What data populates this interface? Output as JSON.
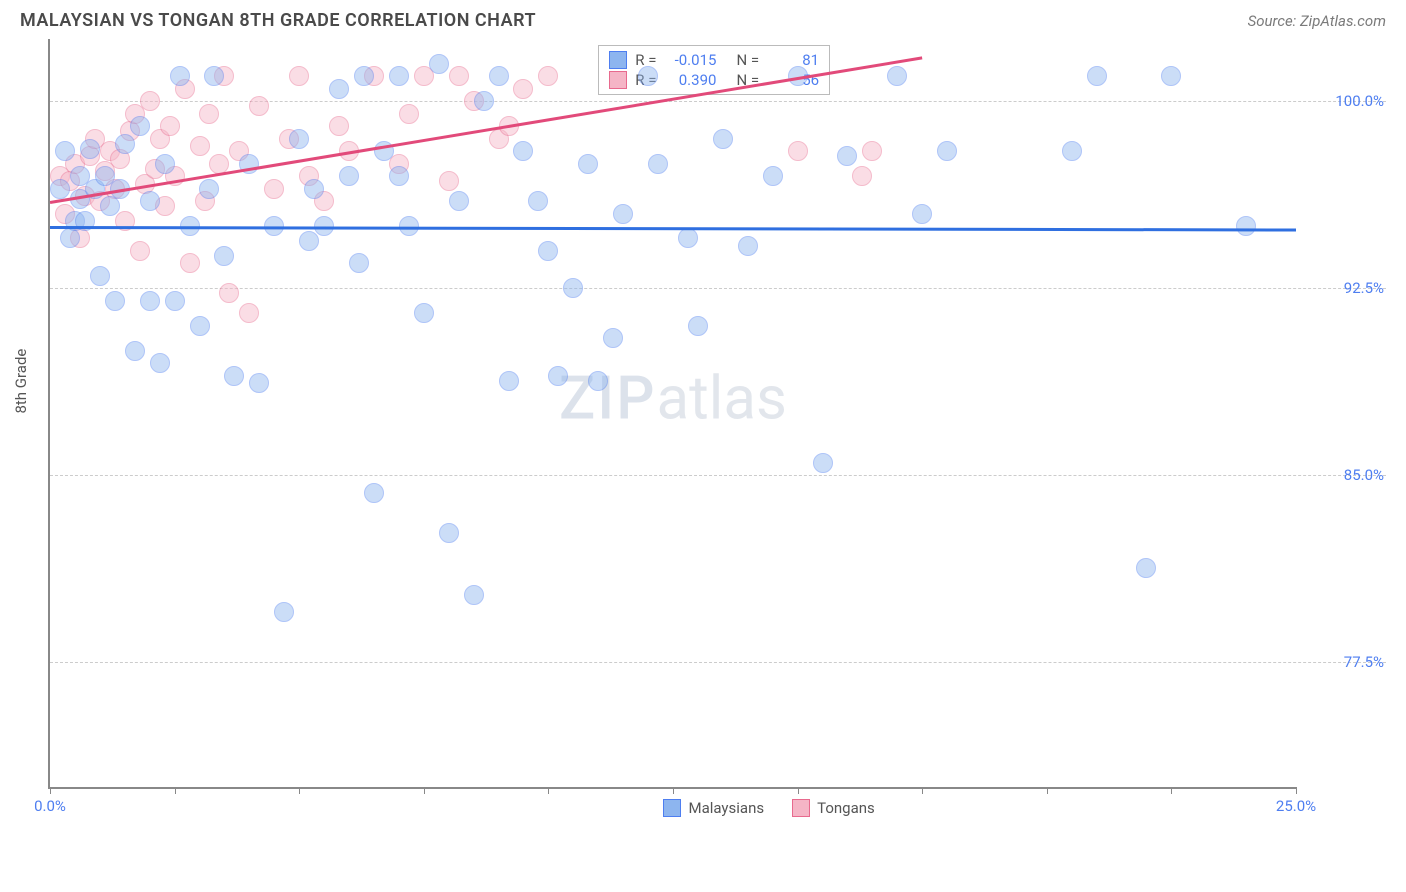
{
  "title": "MALAYSIAN VS TONGAN 8TH GRADE CORRELATION CHART",
  "source": "Source: ZipAtlas.com",
  "watermark": {
    "part1": "ZIP",
    "part2": "atlas"
  },
  "y_axis_label": "8th Grade",
  "chart": {
    "type": "scatter",
    "xlim": [
      0,
      25
    ],
    "ylim": [
      72.5,
      102.5
    ],
    "x_ticks": [
      0,
      2.5,
      5,
      7.5,
      10,
      12.5,
      15,
      17.5,
      20,
      22.5,
      25
    ],
    "x_tick_labels": {
      "0": "0.0%",
      "25": "25.0%"
    },
    "y_ticks": [
      77.5,
      85.0,
      92.5,
      100.0
    ],
    "y_tick_labels": [
      "77.5%",
      "85.0%",
      "92.5%",
      "100.0%"
    ],
    "grid_color": "#cccccc",
    "axis_color": "#888888",
    "background": "#ffffff",
    "tick_label_color": "#4e7ef0",
    "marker_radius": 10,
    "marker_opacity": 0.45,
    "series": [
      {
        "name": "Malaysians",
        "fill_color": "#8db5ef",
        "stroke_color": "#4e7ef0",
        "trend_color": "#2f6fe0",
        "R": "-0.015",
        "N": "81",
        "trend": {
          "x1": 0,
          "y1": 95.0,
          "x2": 25,
          "y2": 94.9
        },
        "points": [
          [
            0.2,
            96.5
          ],
          [
            0.3,
            98.0
          ],
          [
            0.4,
            94.5
          ],
          [
            0.5,
            95.2
          ],
          [
            0.6,
            97.0
          ],
          [
            0.6,
            96.1
          ],
          [
            0.7,
            95.2
          ],
          [
            0.8,
            98.1
          ],
          [
            0.9,
            96.5
          ],
          [
            1.0,
            93.0
          ],
          [
            1.1,
            97.0
          ],
          [
            1.2,
            95.8
          ],
          [
            1.3,
            92.0
          ],
          [
            1.4,
            96.5
          ],
          [
            1.5,
            98.3
          ],
          [
            1.7,
            90.0
          ],
          [
            1.8,
            99.0
          ],
          [
            2.0,
            92.0
          ],
          [
            2.0,
            96.0
          ],
          [
            2.2,
            89.5
          ],
          [
            2.3,
            97.5
          ],
          [
            2.5,
            92.0
          ],
          [
            2.6,
            101.0
          ],
          [
            2.8,
            95.0
          ],
          [
            3.0,
            91.0
          ],
          [
            3.2,
            96.5
          ],
          [
            3.3,
            101.0
          ],
          [
            3.5,
            93.8
          ],
          [
            3.7,
            89.0
          ],
          [
            4.0,
            97.5
          ],
          [
            4.2,
            88.7
          ],
          [
            4.5,
            95.0
          ],
          [
            4.7,
            79.5
          ],
          [
            5.0,
            98.5
          ],
          [
            5.2,
            94.4
          ],
          [
            5.3,
            96.5
          ],
          [
            5.5,
            95.0
          ],
          [
            5.8,
            100.5
          ],
          [
            6.0,
            97.0
          ],
          [
            6.2,
            93.5
          ],
          [
            6.3,
            101.0
          ],
          [
            6.5,
            84.3
          ],
          [
            6.7,
            98.0
          ],
          [
            7.0,
            101.0
          ],
          [
            7.0,
            97.0
          ],
          [
            7.2,
            95.0
          ],
          [
            7.5,
            91.5
          ],
          [
            7.8,
            101.5
          ],
          [
            8.0,
            82.7
          ],
          [
            8.2,
            96.0
          ],
          [
            8.5,
            80.2
          ],
          [
            8.7,
            100.0
          ],
          [
            9.0,
            101.0
          ],
          [
            9.2,
            88.8
          ],
          [
            9.5,
            98.0
          ],
          [
            9.8,
            96.0
          ],
          [
            10.0,
            94.0
          ],
          [
            10.2,
            89.0
          ],
          [
            10.5,
            92.5
          ],
          [
            10.8,
            97.5
          ],
          [
            11.0,
            88.8
          ],
          [
            11.3,
            90.5
          ],
          [
            11.5,
            95.5
          ],
          [
            12.0,
            101.0
          ],
          [
            12.2,
            97.5
          ],
          [
            12.8,
            94.5
          ],
          [
            13.0,
            91.0
          ],
          [
            13.5,
            98.5
          ],
          [
            14.0,
            94.2
          ],
          [
            14.5,
            97.0
          ],
          [
            15.0,
            101.0
          ],
          [
            15.5,
            85.5
          ],
          [
            16.0,
            97.8
          ],
          [
            17.0,
            101.0
          ],
          [
            17.5,
            95.5
          ],
          [
            18.0,
            98.0
          ],
          [
            22.5,
            101.0
          ],
          [
            22.0,
            81.3
          ],
          [
            21.0,
            101.0
          ],
          [
            20.5,
            98.0
          ],
          [
            24.0,
            95.0
          ]
        ]
      },
      {
        "name": "Tongans",
        "fill_color": "#f5b5c6",
        "stroke_color": "#e86a8e",
        "trend_color": "#e24a7a",
        "R": "0.390",
        "N": "56",
        "trend": {
          "x1": 0,
          "y1": 96.0,
          "x2": 17.5,
          "y2": 101.8
        },
        "points": [
          [
            0.2,
            97.0
          ],
          [
            0.3,
            95.5
          ],
          [
            0.4,
            96.8
          ],
          [
            0.5,
            97.5
          ],
          [
            0.6,
            94.5
          ],
          [
            0.7,
            96.2
          ],
          [
            0.8,
            97.8
          ],
          [
            0.9,
            98.5
          ],
          [
            1.0,
            96.0
          ],
          [
            1.1,
            97.2
          ],
          [
            1.2,
            98.0
          ],
          [
            1.3,
            96.5
          ],
          [
            1.4,
            97.7
          ],
          [
            1.5,
            95.2
          ],
          [
            1.6,
            98.8
          ],
          [
            1.7,
            99.5
          ],
          [
            1.8,
            94.0
          ],
          [
            1.9,
            96.7
          ],
          [
            2.0,
            100.0
          ],
          [
            2.1,
            97.3
          ],
          [
            2.2,
            98.5
          ],
          [
            2.3,
            95.8
          ],
          [
            2.4,
            99.0
          ],
          [
            2.5,
            97.0
          ],
          [
            2.7,
            100.5
          ],
          [
            2.8,
            93.5
          ],
          [
            3.0,
            98.2
          ],
          [
            3.1,
            96.0
          ],
          [
            3.2,
            99.5
          ],
          [
            3.4,
            97.5
          ],
          [
            3.5,
            101.0
          ],
          [
            3.6,
            92.3
          ],
          [
            3.8,
            98.0
          ],
          [
            4.0,
            91.5
          ],
          [
            4.2,
            99.8
          ],
          [
            4.5,
            96.5
          ],
          [
            4.8,
            98.5
          ],
          [
            5.0,
            101.0
          ],
          [
            5.2,
            97.0
          ],
          [
            5.5,
            96.0
          ],
          [
            5.8,
            99.0
          ],
          [
            6.0,
            98.0
          ],
          [
            6.5,
            101.0
          ],
          [
            7.0,
            97.5
          ],
          [
            7.2,
            99.5
          ],
          [
            7.5,
            101.0
          ],
          [
            8.0,
            96.8
          ],
          [
            8.2,
            101.0
          ],
          [
            8.5,
            100.0
          ],
          [
            9.0,
            98.5
          ],
          [
            9.2,
            99.0
          ],
          [
            9.5,
            100.5
          ],
          [
            10.0,
            101.0
          ],
          [
            15.0,
            98.0
          ],
          [
            16.5,
            98.0
          ],
          [
            16.3,
            97.0
          ]
        ]
      }
    ]
  },
  "legend_bottom": [
    {
      "label": "Malaysians",
      "fill": "#8db5ef",
      "stroke": "#4e7ef0"
    },
    {
      "label": "Tongans",
      "fill": "#f5b5c6",
      "stroke": "#e86a8e"
    }
  ]
}
